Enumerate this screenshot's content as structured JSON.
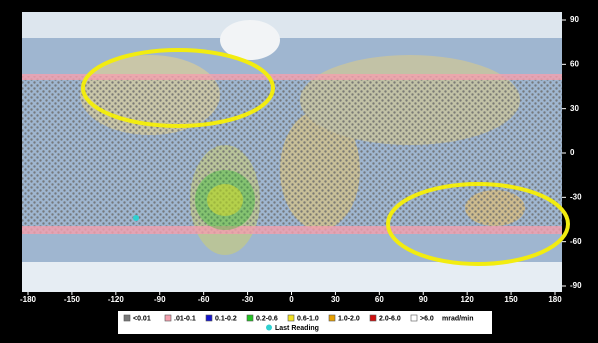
{
  "chart_data": {
    "type": "map",
    "xlim": [
      -180,
      180
    ],
    "ylim": [
      -90,
      90
    ],
    "xticks": [
      -180,
      -150,
      -120,
      -90,
      -60,
      -30,
      0,
      30,
      60,
      90,
      120,
      150,
      180
    ],
    "yticks": [
      90,
      60,
      30,
      0,
      -30,
      -60,
      -90
    ],
    "legend": [
      {
        "label": "<0.01",
        "color": "#7a7a7a"
      },
      {
        "label": ".01-0.1",
        "color": "#f4a0ae"
      },
      {
        "label": "0.1-0.2",
        "color": "#1414d0"
      },
      {
        "label": "0.2-0.6",
        "color": "#22c422"
      },
      {
        "label": "0.6-1.0",
        "color": "#f0e020"
      },
      {
        "label": "1.0-2.0",
        "color": "#e8a000"
      },
      {
        "label": "2.0-6.0",
        "color": "#d01010"
      },
      {
        "label": ">6.0",
        "color": "#ffffff"
      }
    ],
    "unit": "mrad/min",
    "last_reading": {
      "label": "Last Reading",
      "color": "#30d0d0"
    }
  }
}
